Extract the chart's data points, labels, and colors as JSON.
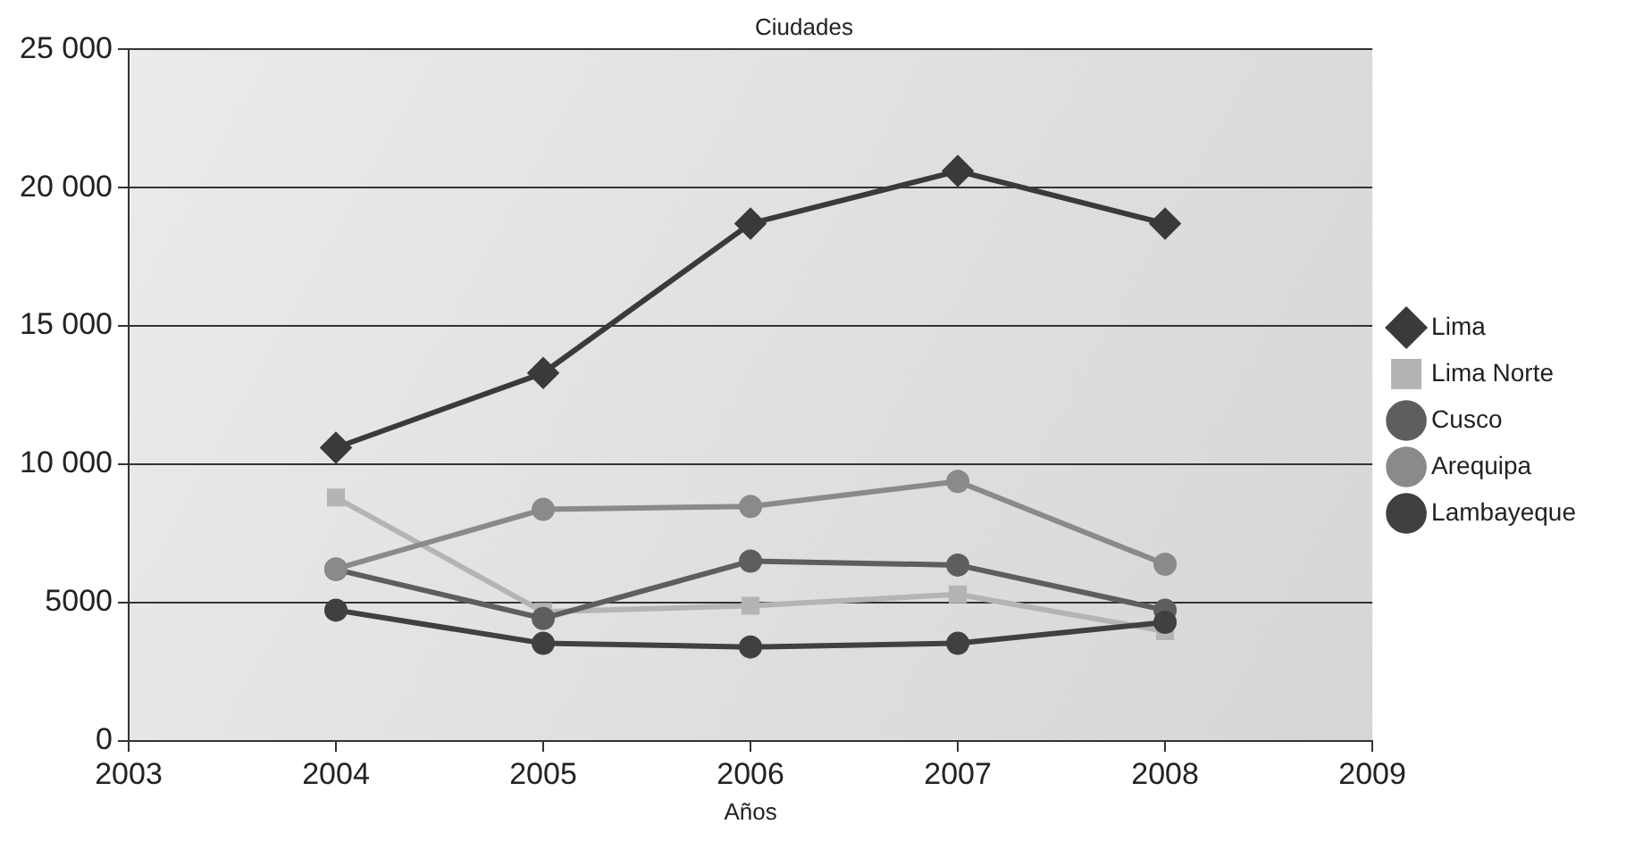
{
  "chart_data": {
    "type": "line",
    "title": "Ciudades",
    "xlabel": "Años",
    "x": [
      2004,
      2005,
      2006,
      2007,
      2008
    ],
    "xlim": [
      2003,
      2009
    ],
    "xticks": [
      2003,
      2004,
      2005,
      2006,
      2007,
      2008,
      2009
    ],
    "ylim": [
      0,
      25000
    ],
    "yticks": [
      {
        "value": 0,
        "label": "0"
      },
      {
        "value": 5000,
        "label": "5000"
      },
      {
        "value": 10000,
        "label": "10 000"
      },
      {
        "value": 15000,
        "label": "15 000"
      },
      {
        "value": 20000,
        "label": "20 000"
      },
      {
        "value": 25000,
        "label": "25 000"
      }
    ],
    "grid": "y",
    "legend": "right",
    "series": [
      {
        "name": "Lima",
        "color": "#3a3a3a",
        "marker": "diamond",
        "values": [
          10600,
          13300,
          18700,
          20600,
          18700
        ]
      },
      {
        "name": "Lima Norte",
        "color": "#b4b4b4",
        "marker": "square",
        "values": [
          8800,
          4670,
          4890,
          5300,
          3970
        ]
      },
      {
        "name": "Cusco",
        "color": "#5e5e5e",
        "marker": "circle",
        "values": [
          6200,
          4430,
          6500,
          6360,
          4730
        ]
      },
      {
        "name": "Arequipa",
        "color": "#8a8a8a",
        "marker": "circle",
        "values": [
          6220,
          8370,
          8480,
          9380,
          6390
        ]
      },
      {
        "name": "Lambayeque",
        "color": "#404040",
        "marker": "circle",
        "values": [
          4730,
          3530,
          3400,
          3530,
          4290
        ]
      }
    ]
  }
}
